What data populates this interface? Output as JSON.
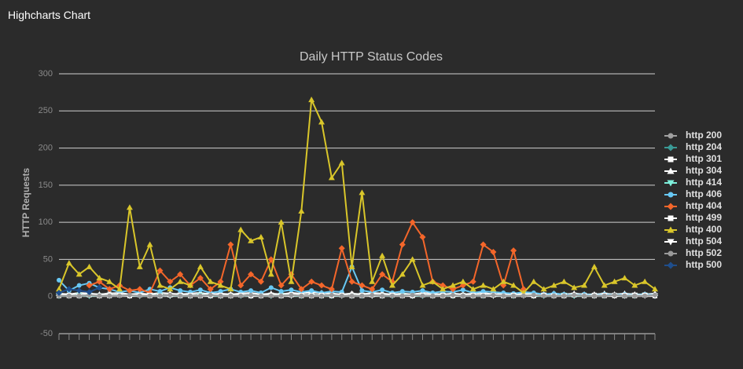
{
  "header": {
    "title": "Highcharts Chart"
  },
  "chart_data": {
    "type": "line",
    "title": "Daily HTTP Status Codes",
    "y_label": "HTTP Requests",
    "categories": [
      null,
      null,
      null,
      null,
      null,
      null,
      null,
      null,
      null,
      null,
      null,
      null,
      null,
      null,
      null,
      null,
      null,
      null,
      null,
      null,
      null,
      null,
      null,
      null,
      null,
      null,
      null,
      null,
      null,
      null,
      null,
      null,
      null,
      null,
      null,
      null,
      null,
      null,
      null,
      null,
      null,
      null,
      null,
      null,
      null,
      null,
      null,
      null,
      null,
      null,
      null,
      null,
      null,
      null,
      null,
      null,
      null,
      null,
      null,
      null
    ],
    "ylim": [
      -50,
      300
    ],
    "yticks": [
      -50,
      0,
      50,
      100,
      150,
      200,
      250,
      300
    ],
    "grid": true,
    "legend": "right",
    "series": [
      {
        "name": "http 200",
        "color": "#a0a0a0",
        "symbol": "circle",
        "values": [
          3,
          2,
          4,
          3,
          2,
          5,
          3,
          2,
          4,
          3,
          2,
          3,
          4,
          2,
          3,
          5,
          2,
          3,
          4,
          2,
          3,
          2,
          4,
          3,
          5,
          4,
          3,
          2,
          3,
          4,
          2,
          3,
          4,
          2,
          3,
          2,
          4,
          3,
          2,
          3,
          2,
          4,
          3,
          2,
          3,
          2,
          3,
          2,
          2,
          3,
          2,
          3,
          2,
          2,
          3,
          2,
          3,
          2,
          2,
          3
        ]
      },
      {
        "name": "http 204",
        "color": "#3a9a96",
        "symbol": "diamond",
        "values": [
          1,
          2,
          1,
          1,
          2,
          1,
          2,
          1,
          1,
          2,
          1,
          1,
          2,
          1,
          2,
          1,
          1,
          2,
          1,
          1,
          2,
          1,
          1,
          2,
          1,
          2,
          1,
          1,
          2,
          1,
          1,
          2,
          1,
          1,
          2,
          1,
          1,
          2,
          1,
          1,
          2,
          1,
          1,
          2,
          1,
          1,
          2,
          1,
          1,
          2,
          1,
          1,
          2,
          1,
          1,
          2,
          1,
          1,
          2,
          1
        ]
      },
      {
        "name": "http 301",
        "color": "#ffffff",
        "symbol": "square",
        "values": [
          2,
          1,
          2,
          3,
          1,
          2,
          2,
          1,
          3,
          2,
          1,
          2,
          2,
          1,
          2,
          3,
          1,
          2,
          2,
          1,
          2,
          2,
          1,
          3,
          2,
          2,
          1,
          2,
          2,
          1,
          2,
          3,
          1,
          2,
          2,
          1,
          2,
          2,
          1,
          2,
          2,
          1,
          2,
          2,
          1,
          2,
          2,
          1,
          2,
          2,
          1,
          2,
          2,
          1,
          2,
          2,
          1,
          2,
          2,
          1
        ]
      },
      {
        "name": "http 304",
        "color": "#ffffff",
        "symbol": "triangle",
        "values": [
          4,
          3,
          5,
          4,
          3,
          4,
          5,
          3,
          4,
          3,
          5,
          4,
          3,
          4,
          5,
          3,
          4,
          3,
          4,
          5,
          3,
          4,
          3,
          5,
          4,
          6,
          5,
          4,
          3,
          4,
          3,
          5,
          4,
          3,
          4,
          3,
          5,
          4,
          3,
          4,
          3,
          4,
          5,
          3,
          4,
          3,
          4,
          3,
          3,
          4,
          3,
          4,
          3,
          3,
          4,
          3,
          4,
          3,
          3,
          4
        ]
      },
      {
        "name": "http 414",
        "color": "#7ef0dc",
        "symbol": "triangle-down",
        "values": [
          1,
          1,
          2,
          1,
          1,
          1,
          2,
          1,
          1,
          1,
          2,
          1,
          1,
          1,
          2,
          1,
          1,
          1,
          2,
          1,
          1,
          1,
          2,
          1,
          1,
          1,
          2,
          1,
          1,
          1,
          2,
          1,
          1,
          1,
          2,
          1,
          1,
          1,
          2,
          1,
          1,
          1,
          2,
          1,
          1,
          1,
          2,
          1,
          1,
          1,
          2,
          1,
          1,
          1,
          2,
          1,
          1,
          1,
          2,
          1
        ]
      },
      {
        "name": "http 406",
        "color": "#68c8f4",
        "symbol": "circle",
        "values": [
          22,
          8,
          15,
          18,
          12,
          10,
          6,
          8,
          5,
          10,
          7,
          12,
          8,
          6,
          9,
          5,
          7,
          10,
          6,
          8,
          5,
          12,
          7,
          9,
          6,
          8,
          5,
          7,
          6,
          40,
          8,
          6,
          9,
          5,
          7,
          6,
          8,
          5,
          7,
          6,
          9,
          5,
          7,
          6,
          5,
          4,
          6,
          5,
          3,
          4,
          3,
          2,
          3,
          2,
          3,
          2,
          3,
          2,
          3,
          2
        ]
      },
      {
        "name": "http 404",
        "color": "#f4662a",
        "symbol": "diamond",
        "values": [
          null,
          null,
          null,
          15,
          20,
          10,
          15,
          8,
          10,
          5,
          35,
          20,
          30,
          15,
          25,
          10,
          20,
          70,
          15,
          30,
          20,
          50,
          15,
          30,
          10,
          20,
          15,
          10,
          65,
          20,
          15,
          10,
          30,
          20,
          70,
          100,
          80,
          20,
          15,
          10,
          15,
          20,
          70,
          60,
          15,
          62,
          10,
          null,
          null,
          null,
          null,
          null,
          null,
          null,
          null,
          null,
          null,
          null,
          null,
          null
        ]
      },
      {
        "name": "http 499",
        "color": "#ffffff",
        "symbol": "square",
        "values": [
          1,
          2,
          1,
          2,
          1,
          1,
          2,
          1,
          2,
          1,
          1,
          2,
          1,
          2,
          1,
          1,
          2,
          1,
          2,
          1,
          1,
          2,
          1,
          2,
          1,
          1,
          2,
          1,
          2,
          1,
          1,
          2,
          1,
          2,
          1,
          1,
          2,
          1,
          2,
          1,
          1,
          2,
          1,
          2,
          1,
          1,
          2,
          1,
          2,
          1,
          1,
          2,
          1,
          2,
          1,
          1,
          2,
          1,
          2,
          1
        ]
      },
      {
        "name": "http 400",
        "color": "#d9c62a",
        "symbol": "triangle",
        "values": [
          10,
          45,
          30,
          40,
          25,
          20,
          10,
          120,
          40,
          70,
          15,
          10,
          20,
          15,
          40,
          20,
          15,
          10,
          90,
          75,
          80,
          30,
          100,
          20,
          115,
          265,
          235,
          160,
          180,
          40,
          140,
          20,
          55,
          15,
          30,
          50,
          15,
          20,
          10,
          15,
          20,
          10,
          15,
          10,
          20,
          15,
          5,
          20,
          10,
          15,
          20,
          12,
          15,
          40,
          15,
          20,
          25,
          15,
          20,
          10
        ]
      },
      {
        "name": "http 504",
        "color": "#ffffff",
        "symbol": "triangle-down",
        "values": [
          2,
          1,
          1,
          2,
          1,
          1,
          2,
          1,
          1,
          2,
          1,
          1,
          2,
          1,
          1,
          2,
          1,
          1,
          2,
          1,
          1,
          2,
          1,
          1,
          2,
          1,
          1,
          2,
          1,
          1,
          2,
          1,
          1,
          2,
          1,
          1,
          2,
          1,
          1,
          2,
          1,
          1,
          2,
          1,
          1,
          2,
          1,
          1,
          2,
          1,
          1,
          2,
          1,
          1,
          2,
          1,
          1,
          2,
          1,
          1
        ]
      },
      {
        "name": "http 502",
        "color": "#9a9a9a",
        "symbol": "circle",
        "values": [
          1,
          1,
          1,
          2,
          1,
          1,
          1,
          2,
          1,
          1,
          1,
          2,
          1,
          1,
          1,
          2,
          1,
          1,
          1,
          2,
          1,
          1,
          1,
          2,
          1,
          1,
          1,
          2,
          1,
          1,
          1,
          2,
          1,
          1,
          1,
          2,
          1,
          1,
          1,
          2,
          1,
          1,
          1,
          2,
          1,
          1,
          1,
          2,
          1,
          1,
          1,
          2,
          1,
          1,
          1,
          2,
          1,
          1,
          1,
          2
        ]
      },
      {
        "name": "http 500",
        "color": "#1f4e8c",
        "symbol": "diamond",
        "values": [
          5,
          10,
          8,
          6,
          12,
          null,
          null,
          null,
          null,
          null,
          null,
          null,
          null,
          null,
          null,
          null,
          null,
          null,
          null,
          null,
          null,
          null,
          null,
          null,
          null,
          null,
          null,
          null,
          null,
          null,
          null,
          null,
          null,
          null,
          null,
          null,
          null,
          null,
          null,
          null,
          null,
          null,
          null,
          null,
          null,
          null,
          null,
          null,
          null,
          null,
          null,
          null,
          null,
          null,
          null,
          null,
          null,
          null,
          null,
          null
        ]
      }
    ]
  }
}
